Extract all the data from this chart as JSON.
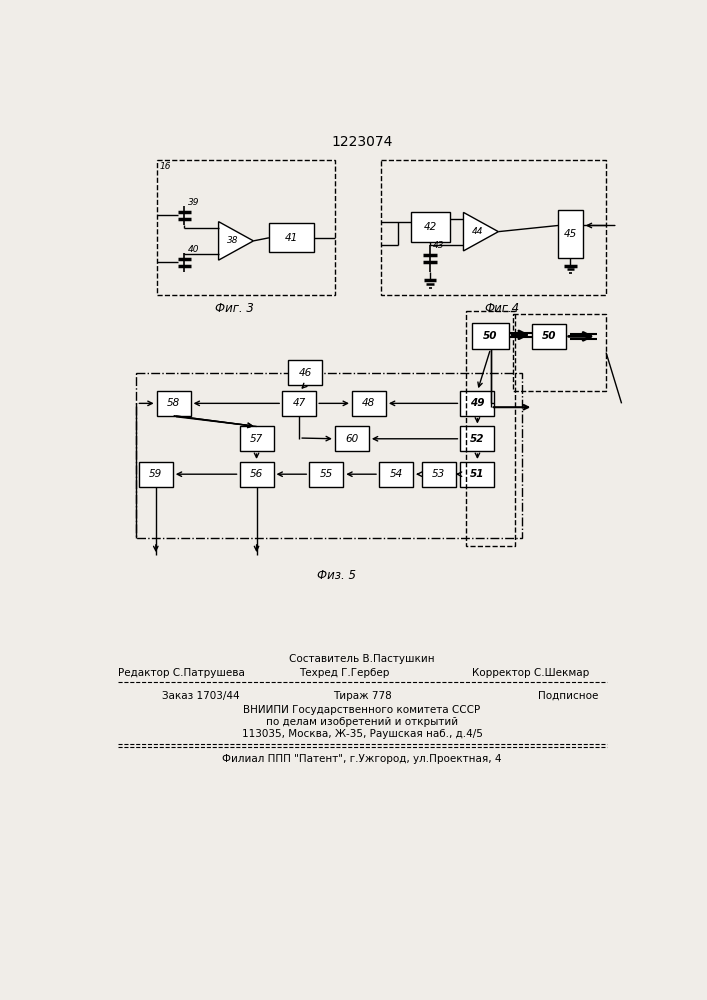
{
  "title": "1223074",
  "fig3_label": "Фиг. 3",
  "fig4_label": "Фиг.4",
  "fig5_label": "Физ. 5",
  "footer_sestavitel": "Составитель В.Пастушкин",
  "footer_redaktor": "Редактор С.Патрушева",
  "footer_tehred": "Техред Г.Гербер",
  "footer_korrektor": "Корректор С.Шекмар",
  "footer_order": "Заказ 1703/44",
  "footer_tirazh": "Тираж 778",
  "footer_podpisnoe": "Подписное",
  "footer_vniiipi": "ВНИИПИ Государственного комитета СССР",
  "footer_po_delam": "по делам изобретений и открытий",
  "footer_address": "113035, Москва, Ж-35, Раушская наб., д.4/5",
  "footer_filial": "Филиал ППП \"Патент\", г.Ужгород, ул.Проектная, 4",
  "bg_color": "#f0ede8"
}
